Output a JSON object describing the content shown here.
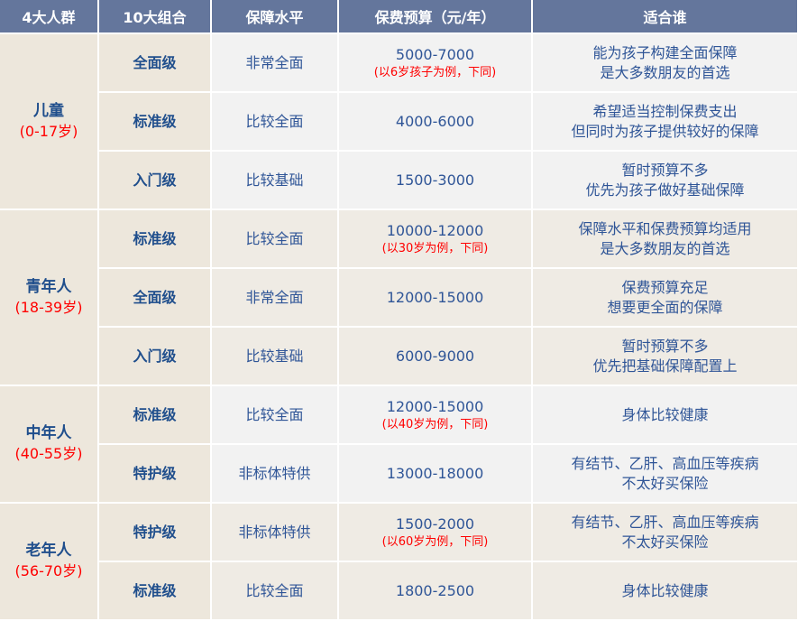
{
  "header": [
    "4大人群",
    "10大组合",
    "保障水平",
    "保费预算（元/年）",
    "适合谁"
  ],
  "groups": [
    {
      "name": "儿童",
      "age": "(0-17岁)",
      "shade": "gray",
      "rows": [
        {
          "combo": "全面级",
          "level": "非常全面",
          "budget": "5000-7000",
          "note": "(以6岁孩子为例，下同)",
          "fit": [
            "能为孩子构建全面保障",
            "是大多数朋友的首选"
          ]
        },
        {
          "combo": "标准级",
          "level": "比较全面",
          "budget": "4000-6000",
          "note": "",
          "fit": [
            "希望适当控制保费支出",
            "但同时为孩子提供较好的保障"
          ]
        },
        {
          "combo": "入门级",
          "level": "比较基础",
          "budget": "1500-3000",
          "note": "",
          "fit": [
            "暂时预算不多",
            "优先为孩子做好基础保障"
          ]
        }
      ]
    },
    {
      "name": "青年人",
      "age": "(18-39岁)",
      "shade": "beige",
      "rows": [
        {
          "combo": "标准级",
          "level": "比较全面",
          "budget": "10000-12000",
          "note": "(以30岁为例，下同)",
          "fit": [
            "保障水平和保费预算均适用",
            "是大多数朋友的首选"
          ]
        },
        {
          "combo": "全面级",
          "level": "非常全面",
          "budget": "12000-15000",
          "note": "",
          "fit": [
            "保费预算充足",
            "想要更全面的保障"
          ]
        },
        {
          "combo": "入门级",
          "level": "比较基础",
          "budget": "6000-9000",
          "note": "",
          "fit": [
            "暂时预算不多",
            "优先把基础保障配置上"
          ]
        }
      ]
    },
    {
      "name": "中年人",
      "age": "(40-55岁)",
      "shade": "gray",
      "rows": [
        {
          "combo": "标准级",
          "level": "比较全面",
          "budget": "12000-15000",
          "note": "(以40岁为例，下同)",
          "fit": [
            "身体比较健康"
          ]
        },
        {
          "combo": "特护级",
          "level": "非标体特供",
          "budget": "13000-18000",
          "note": "",
          "fit": [
            "有结节、乙肝、高血压等疾病",
            "不太好买保险"
          ]
        }
      ]
    },
    {
      "name": "老年人",
      "age": "(56-70岁)",
      "shade": "beige",
      "rows": [
        {
          "combo": "特护级",
          "level": "非标体特供",
          "budget": "1500-2000",
          "note": "(以60岁为例，下同)",
          "fit": [
            "有结节、乙肝、高血压等疾病",
            "不太好买保险"
          ]
        },
        {
          "combo": "标准级",
          "level": "比较全面",
          "budget": "1800-2500",
          "note": "",
          "fit": [
            "身体比较健康"
          ]
        }
      ]
    }
  ]
}
